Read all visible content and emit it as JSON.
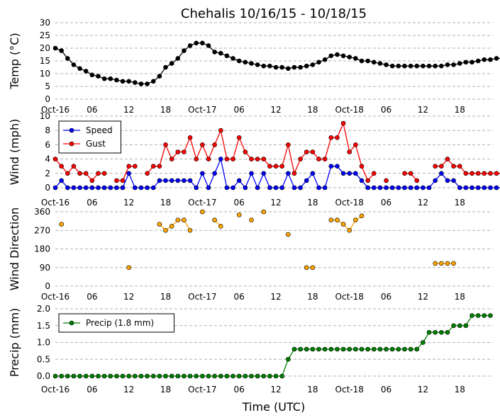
{
  "figure": {
    "title": "Chehalis 10/16/15 - 10/18/15",
    "xlabel": "Time (UTC)"
  },
  "x_ticks": [
    "Oct-16",
    "06",
    "12",
    "18",
    "Oct-17",
    "06",
    "12",
    "18",
    "Oct-18",
    "06",
    "12",
    "18"
  ],
  "colors": {
    "temp": "#000000",
    "speed": "#0000ff",
    "gust": "#ff0000",
    "direction": "#ffa500",
    "precip": "#008000",
    "grid": "#b0b0b0"
  },
  "chart_data": [
    {
      "type": "line",
      "ylabel": "Temp (°C)",
      "ylim": [
        0,
        30
      ],
      "yticks": [
        0,
        5,
        10,
        15,
        20,
        25,
        30
      ],
      "x_unit": "hours since Oct-16 00 UTC",
      "series": [
        {
          "values": [
            20,
            19,
            16,
            13.5,
            12,
            11,
            9.5,
            9,
            8,
            8,
            7.5,
            7,
            7,
            6.5,
            6,
            6,
            7,
            9,
            12.5,
            14,
            16,
            19,
            21,
            22,
            22,
            21,
            18.5,
            18,
            17,
            16,
            15,
            14.5,
            14,
            13.5,
            13,
            13,
            12.5,
            12.5,
            12,
            12.5,
            12.5,
            13,
            13.5,
            14.5,
            15.5,
            17,
            17.5,
            17,
            16.5,
            16,
            15,
            15,
            14.5,
            14,
            13.5,
            13,
            13,
            13,
            13,
            13,
            13,
            13,
            13,
            13,
            13.5,
            13.5,
            14,
            14.5,
            14.5,
            15,
            15.5,
            15.5,
            16,
            16
          ]
        }
      ]
    },
    {
      "type": "line",
      "ylabel": "Wind (mph)",
      "ylim": [
        0,
        10
      ],
      "yticks": [
        0,
        2,
        4,
        6,
        8,
        10
      ],
      "legend": "top-left",
      "series": [
        {
          "name": "Speed",
          "values": [
            0,
            1,
            0,
            0,
            0,
            0,
            0,
            0,
            0,
            0,
            0,
            0,
            2,
            0,
            0,
            0,
            0,
            1,
            1,
            1,
            1,
            1,
            1,
            0,
            2,
            0,
            2,
            4,
            0,
            0,
            1,
            0,
            2,
            0,
            2,
            0,
            0,
            0,
            2,
            0,
            0,
            1,
            2,
            0,
            0,
            3,
            3,
            2,
            2,
            2,
            1,
            0,
            0,
            0,
            0,
            0,
            0,
            0,
            0,
            0,
            0,
            0,
            1,
            2,
            1,
            1,
            0,
            0,
            0,
            0,
            0,
            0,
            0,
            0
          ]
        },
        {
          "name": "Gust",
          "values": [
            4,
            3,
            2,
            3,
            2,
            2,
            1,
            2,
            2,
            null,
            1,
            1,
            3,
            3,
            null,
            2,
            3,
            3,
            6,
            4,
            5,
            5,
            7,
            4,
            6,
            4,
            6,
            8,
            4,
            4,
            7,
            5,
            4,
            4,
            4,
            3,
            3,
            3,
            6,
            2,
            4,
            5,
            5,
            4,
            4,
            7,
            7,
            9,
            5,
            6,
            3,
            1,
            2,
            null,
            1,
            null,
            null,
            2,
            2,
            1,
            null,
            null,
            3,
            3,
            4,
            3,
            3,
            2,
            2,
            2,
            2,
            2,
            2,
            2
          ]
        }
      ]
    },
    {
      "type": "scatter",
      "ylabel": "Wind Direction",
      "ylim": [
        0,
        360
      ],
      "yticks": [
        0,
        90,
        180,
        270,
        360
      ],
      "series": [
        {
          "values": [
            null,
            300,
            null,
            null,
            null,
            null,
            null,
            null,
            null,
            null,
            null,
            null,
            90,
            null,
            null,
            null,
            null,
            300,
            270,
            290,
            320,
            320,
            270,
            null,
            360,
            null,
            320,
            290,
            null,
            null,
            345,
            null,
            320,
            null,
            360,
            null,
            null,
            null,
            250,
            null,
            null,
            90,
            90,
            null,
            null,
            320,
            320,
            300,
            270,
            320,
            340,
            null,
            null,
            null,
            null,
            null,
            null,
            null,
            null,
            null,
            null,
            null,
            110,
            110,
            110,
            110,
            null,
            null,
            null,
            null,
            null,
            null,
            null,
            null
          ]
        }
      ]
    },
    {
      "type": "line",
      "ylabel": "Precip (mm)",
      "ylim": [
        0,
        2.0
      ],
      "yticks": [
        "0.0",
        "0.5",
        "1.0",
        "1.5",
        "2.0"
      ],
      "legend": "top-left",
      "series": [
        {
          "name": "Precip (1.8 mm)",
          "values": [
            0,
            0,
            0,
            0,
            0,
            0,
            0,
            0,
            0,
            0,
            0,
            0,
            0,
            0,
            0,
            0,
            0,
            0,
            0,
            0,
            0,
            0,
            0,
            0,
            0,
            0,
            0,
            0,
            0,
            0,
            0,
            0,
            0,
            0,
            0,
            0,
            0,
            0,
            0.5,
            0.8,
            0.8,
            0.8,
            0.8,
            0.8,
            0.8,
            0.8,
            0.8,
            0.8,
            0.8,
            0.8,
            0.8,
            0.8,
            0.8,
            0.8,
            0.8,
            0.8,
            0.8,
            0.8,
            0.8,
            0.8,
            1.0,
            1.3,
            1.3,
            1.3,
            1.3,
            1.5,
            1.5,
            1.5,
            1.8,
            1.8,
            1.8,
            1.8
          ]
        }
      ]
    }
  ]
}
